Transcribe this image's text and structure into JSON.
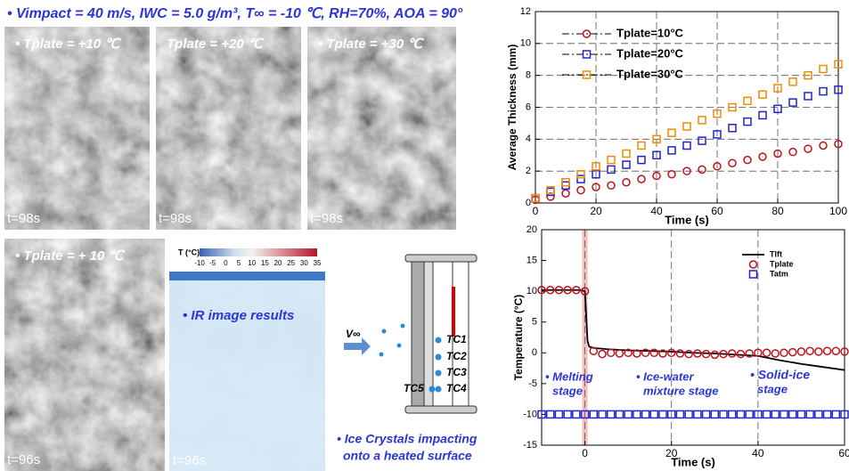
{
  "header": "• Vimpact = 40 m/s, IWC = 5.0 g/m³, T∞ = -10 ℃, RH=70%, AOA = 90°",
  "photos": [
    {
      "label": "• Tplate = +10 ℃",
      "time": "t=98s"
    },
    {
      "label": "Tplate = +20 ℃",
      "time": "t=98s"
    },
    {
      "label": "• Tplate = +30 ℃",
      "time": "t=98s"
    },
    {
      "label": "• Tplate = + 10 ℃",
      "time": "t=96s"
    }
  ],
  "ir_image": {
    "time": "t=96s",
    "caption": "• IR image results",
    "colorbar": {
      "title": "T (°C)",
      "clim": [
        -10,
        35
      ],
      "ticks": [
        -10,
        -5,
        0,
        5,
        10,
        15,
        20,
        25,
        30,
        35
      ]
    }
  },
  "schematic": {
    "velocity": "V∞",
    "sensors": [
      "TC1",
      "TC2",
      "TC3",
      "TC4",
      "TC5"
    ],
    "caption": [
      "• Ice Crystals impacting",
      "onto a heated surface"
    ]
  },
  "chart_data": [
    {
      "type": "scatter",
      "xlabel": "Time (s)",
      "ylabel": "Average Thickness (mm)",
      "xlim": [
        0,
        100
      ],
      "xticks": [
        0,
        20,
        40,
        60,
        80,
        100
      ],
      "ylim": [
        0,
        12
      ],
      "yticks": [
        0,
        2,
        4,
        6,
        8,
        10,
        12
      ],
      "grid": true,
      "legend": "upper left",
      "series": [
        {
          "name": "Tplate=10°C",
          "color": "#c0101a",
          "marker": "circle",
          "x": [
            0,
            5,
            10,
            15,
            20,
            25,
            30,
            35,
            40,
            45,
            50,
            55,
            60,
            65,
            70,
            75,
            80,
            85,
            90,
            95,
            100
          ],
          "values": [
            0.2,
            0.4,
            0.6,
            0.8,
            1.0,
            1.1,
            1.3,
            1.5,
            1.7,
            1.8,
            2.0,
            2.1,
            2.3,
            2.5,
            2.7,
            2.9,
            3.1,
            3.2,
            3.4,
            3.6,
            3.7
          ]
        },
        {
          "name": "Tplate=20°C",
          "color": "#2323d0",
          "marker": "square",
          "x": [
            0,
            5,
            10,
            15,
            20,
            25,
            30,
            35,
            40,
            45,
            50,
            55,
            60,
            65,
            70,
            75,
            80,
            85,
            90,
            95,
            100
          ],
          "values": [
            0.3,
            0.7,
            1.1,
            1.5,
            1.8,
            2.1,
            2.4,
            2.7,
            3.0,
            3.3,
            3.6,
            3.9,
            4.3,
            4.7,
            5.1,
            5.5,
            5.9,
            6.3,
            6.7,
            7.0,
            7.1
          ]
        },
        {
          "name": "Tplate=30°C",
          "color": "#f08c00",
          "marker": "square",
          "x": [
            0,
            5,
            10,
            15,
            20,
            25,
            30,
            35,
            40,
            45,
            50,
            55,
            60,
            65,
            70,
            75,
            80,
            85,
            90,
            95,
            100
          ],
          "values": [
            0.3,
            0.8,
            1.3,
            1.8,
            2.3,
            2.7,
            3.1,
            3.6,
            4.0,
            4.4,
            4.8,
            5.2,
            5.6,
            6.0,
            6.4,
            6.8,
            7.2,
            7.6,
            8.0,
            8.4,
            8.7
          ]
        }
      ]
    },
    {
      "type": "line",
      "xlabel": "Time (s)",
      "ylabel": "Temperature (°C)",
      "xlim": [
        -10,
        60
      ],
      "xticks": [
        0,
        20,
        40,
        60
      ],
      "ylim": [
        -15,
        20
      ],
      "yticks": [
        -15,
        -10,
        -5,
        0,
        5,
        10,
        15,
        20
      ],
      "grid": true,
      "legend": "upper right",
      "annotations": [
        [
          "• Melting",
          "stage"
        ],
        [
          "• Ice-water",
          "mixture stage"
        ],
        [
          "• Solid-ice",
          "stage"
        ]
      ],
      "series": [
        {
          "name": "Tlft",
          "color": "#000000",
          "marker": "line",
          "x": [
            -10,
            -5,
            -1,
            0,
            0.3,
            0.6,
            1,
            2,
            5,
            10,
            15,
            20,
            25,
            30,
            35,
            40,
            45,
            50,
            55,
            60
          ],
          "values": [
            10.2,
            10.2,
            10.2,
            10.0,
            6,
            2,
            1,
            0.8,
            0.6,
            0.4,
            0.3,
            0.2,
            0,
            -0.1,
            -0.3,
            -0.5,
            -1.2,
            -1.8,
            -2.3,
            -2.8
          ]
        },
        {
          "name": "Tplate",
          "color": "#c0101a",
          "marker": "circle",
          "x": [
            -10,
            -8,
            -6,
            -4,
            -2,
            0,
            2,
            4,
            6,
            8,
            10,
            12,
            14,
            16,
            18,
            20,
            22,
            24,
            26,
            28,
            30,
            32,
            34,
            36,
            38,
            40,
            42,
            44,
            46,
            48,
            50,
            52,
            54,
            56,
            58,
            60
          ],
          "values": [
            10.2,
            10.2,
            10.2,
            10.2,
            10.2,
            10.0,
            0.3,
            -0.2,
            0,
            -0.1,
            0,
            -0.1,
            0,
            0,
            -0.1,
            0,
            -0.1,
            -0.2,
            -0.1,
            -0.2,
            -0.3,
            -0.2,
            -0.1,
            -0.2,
            -0.1,
            0,
            0,
            -0.1,
            0,
            0.1,
            0.2,
            0.3,
            0.2,
            0.3,
            0.3,
            0.2
          ]
        },
        {
          "name": "Tatm",
          "color": "#2323d0",
          "marker": "square",
          "x": [
            -10,
            -8,
            -6,
            -4,
            -2,
            0,
            2,
            4,
            6,
            8,
            10,
            12,
            14,
            16,
            18,
            20,
            22,
            24,
            26,
            28,
            30,
            32,
            34,
            36,
            38,
            40,
            42,
            44,
            46,
            48,
            50,
            52,
            54,
            56,
            58,
            60
          ],
          "values": [
            -10,
            -10,
            -10,
            -10,
            -10,
            -10,
            -10,
            -10,
            -10,
            -10,
            -10,
            -10,
            -10,
            -10,
            -10,
            -10,
            -10,
            -10,
            -10,
            -10,
            -10,
            -10,
            -10,
            -10,
            -10,
            -10,
            -10,
            -10,
            -10,
            -10,
            -10,
            -10,
            -10,
            -10,
            -10,
            -10
          ]
        }
      ]
    }
  ]
}
